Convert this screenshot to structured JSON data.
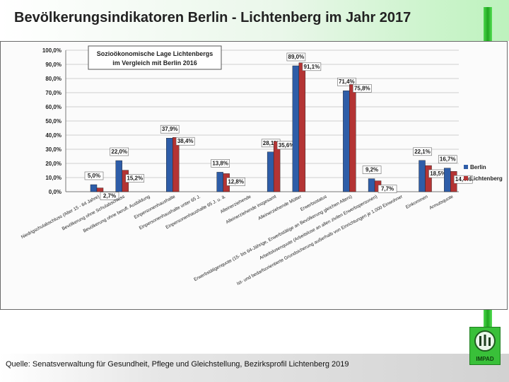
{
  "page": {
    "title": "Bevölkerungsindikatoren Berlin - Lichtenberg im Jahr 2017",
    "source": "Quelle: Senatsverwaltung für Gesundheit, Pflege und Gleichstellung, Bezirksprofil Lichtenberg 2019"
  },
  "logo": {
    "text": "IMPAD"
  },
  "chart_data": {
    "type": "bar",
    "title": "Sozioökonomische Lage Lichtenbergs im Vergleich mit Berlin 2016",
    "title_lines": [
      "Sozioökonomische Lage Lichtenbergs",
      "im Vergleich mit Berlin 2016"
    ],
    "categories": [
      "Niedrigschulabschluss (Alter 15 - 64 Jahre)",
      "Bevölkerung ohne Schulabschluss",
      "Bevölkerung ohne berufl. Ausbildung",
      "Einpersonenhaushalte",
      "Einpersonenhaushalte unter 65 J.",
      "Einpersonenhaushalte 65 J. u. ä.",
      "Alleinerziehende",
      "Alleinerziehende insgesamt",
      "Alleinerziehende Mütter",
      "Erwerbsstatus",
      "Erwerbstätigenquote (15- bis 64-Jährige, Erwerbstätige an Bevölkerung gleichen Alters)",
      "Arbeitslosenquote (Arbeitslose an allen zivilen Erwerbspersonen)",
      "Ist- und bedarfsorientierte Grundsicherung außerhalb von Einrichtungen je 1.000 Einwohner",
      "Einkommen",
      "Armutsquote"
    ],
    "series": [
      {
        "name": "Berlin",
        "color": "#2e5da8",
        "values": [
          5.0,
          22.0,
          null,
          37.9,
          null,
          13.8,
          null,
          28.1,
          89.0,
          null,
          71.4,
          9.2,
          null,
          22.1,
          16.7
        ]
      },
      {
        "name": "Lichtenberg",
        "color": "#b43434",
        "values": [
          2.7,
          15.2,
          null,
          38.4,
          null,
          12.8,
          null,
          35.6,
          91.1,
          null,
          75.8,
          7.7,
          null,
          18.5,
          14.4
        ]
      }
    ],
    "ylim": [
      0,
      100
    ],
    "yticks": [
      "0,0%",
      "10,0%",
      "20,0%",
      "30,0%",
      "40,0%",
      "50,0%",
      "60,0%",
      "70,0%",
      "80,0%",
      "90,0%",
      "100,0%"
    ],
    "grid": true,
    "legend_position": "right"
  }
}
